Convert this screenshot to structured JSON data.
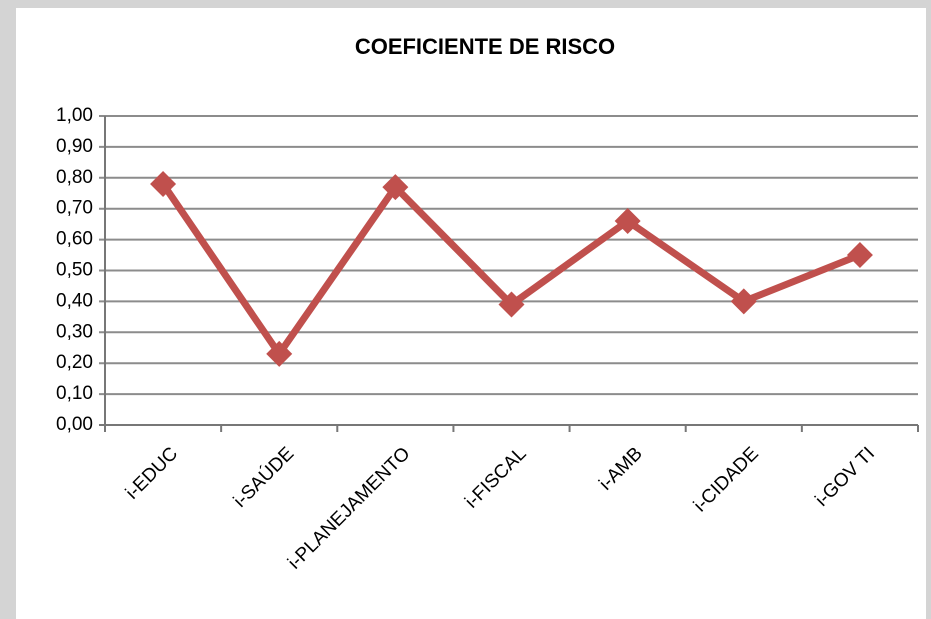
{
  "chart_data": {
    "type": "line",
    "title": "COEFICIENTE DE RISCO",
    "categories": [
      "i-EDUC",
      "i-SAÚDE",
      "i-PLANEJAMENTO",
      "i-FISCAL",
      "i-AMB",
      "i-CIDADE",
      "i-GOV TI"
    ],
    "values": [
      0.78,
      0.23,
      0.77,
      0.39,
      0.66,
      0.4,
      0.55
    ],
    "color": "#c0504d",
    "ylim": [
      0,
      1
    ],
    "yticks": [
      {
        "value": 0,
        "label": "0,00"
      },
      {
        "value": 0.1,
        "label": "0,10"
      },
      {
        "value": 0.2,
        "label": "0,20"
      },
      {
        "value": 0.3,
        "label": "0,30"
      },
      {
        "value": 0.4,
        "label": "0,40"
      },
      {
        "value": 0.5,
        "label": "0,50"
      },
      {
        "value": 0.6,
        "label": "0,60"
      },
      {
        "value": 0.7,
        "label": "0,70"
      },
      {
        "value": 0.8,
        "label": "0,80"
      },
      {
        "value": 0.9,
        "label": "0,90"
      },
      {
        "value": 1,
        "label": "1,00"
      }
    ],
    "grid": true
  }
}
